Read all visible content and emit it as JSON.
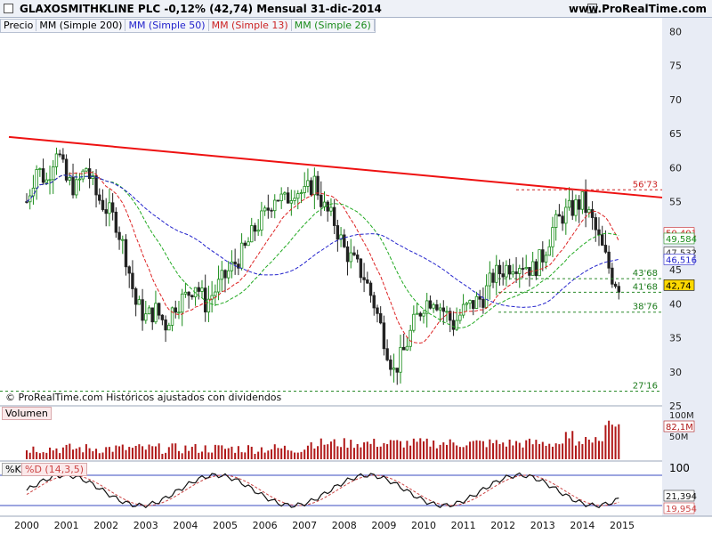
{
  "header": {
    "title": "GLAXOSMITHKLINE PLC   -0,12% (42,74)   Mensual   31-dic-2014",
    "site": "www.ProRealTime.com"
  },
  "legend": {
    "price": "Precio",
    "ma200": "MM (Simple 200)",
    "ma50": "MM (Simple 50)",
    "ma13": "MM (Simple 13)",
    "ma26": "MM (Simple 26)"
  },
  "copyright": "© ProRealTime.com Históricos ajustados con dividendos",
  "volume_label": "Volumen",
  "stoch_label_k": "%K",
  "stoch_label_d": "%D (14,3,5)",
  "colors": {
    "up": "#1a8c1a",
    "down": "#222222",
    "ma50": "#2222cc",
    "ma13": "#dd2222",
    "ma26": "#22aa22",
    "trend": "#ee1111",
    "vol": "#b01818",
    "k": "#111111",
    "d": "#cc4444"
  },
  "chart_data": [
    {
      "type": "candlestick",
      "title": "GLAXOSMITHKLINE PLC",
      "timeframe": "Mensual",
      "ylim": [
        25,
        82
      ],
      "y_ticks": [
        25,
        30,
        35,
        40,
        45,
        50,
        55,
        60,
        65,
        70,
        75,
        80
      ],
      "x_ticks": [
        "2000",
        "2001",
        "2002",
        "2003",
        "2004",
        "2005",
        "2006",
        "2007",
        "2008",
        "2009",
        "2010",
        "2011",
        "2012",
        "2013",
        "2014",
        "2015"
      ],
      "closes": [
        [
          2000.0,
          55
        ],
        [
          2000.25,
          60
        ],
        [
          2000.5,
          58
        ],
        [
          2000.75,
          63
        ],
        [
          2001.0,
          58
        ],
        [
          2001.25,
          57
        ],
        [
          2001.5,
          60
        ],
        [
          2001.75,
          56
        ],
        [
          2002.0,
          54
        ],
        [
          2002.25,
          52
        ],
        [
          2002.5,
          47
        ],
        [
          2002.75,
          40
        ],
        [
          2003.0,
          38
        ],
        [
          2003.25,
          39
        ],
        [
          2003.5,
          37
        ],
        [
          2003.75,
          40
        ],
        [
          2004.0,
          41
        ],
        [
          2004.25,
          43
        ],
        [
          2004.5,
          40
        ],
        [
          2004.75,
          42
        ],
        [
          2005.0,
          44
        ],
        [
          2005.25,
          46
        ],
        [
          2005.5,
          48
        ],
        [
          2005.75,
          51
        ],
        [
          2006.0,
          53
        ],
        [
          2006.25,
          56
        ],
        [
          2006.5,
          55
        ],
        [
          2006.75,
          57
        ],
        [
          2007.0,
          56
        ],
        [
          2007.25,
          58
        ],
        [
          2007.5,
          54
        ],
        [
          2007.75,
          52
        ],
        [
          2008.0,
          48
        ],
        [
          2008.25,
          46
        ],
        [
          2008.5,
          44
        ],
        [
          2008.75,
          40
        ],
        [
          2009.0,
          35
        ],
        [
          2009.25,
          30
        ],
        [
          2009.5,
          33
        ],
        [
          2009.75,
          37
        ],
        [
          2010.0,
          40
        ],
        [
          2010.25,
          41
        ],
        [
          2010.5,
          39
        ],
        [
          2010.75,
          37
        ],
        [
          2011.0,
          39
        ],
        [
          2011.25,
          40
        ],
        [
          2011.5,
          41
        ],
        [
          2011.75,
          44
        ],
        [
          2012.0,
          45
        ],
        [
          2012.25,
          46
        ],
        [
          2012.5,
          46
        ],
        [
          2012.75,
          45
        ],
        [
          2013.0,
          47
        ],
        [
          2013.25,
          51
        ],
        [
          2013.5,
          53
        ],
        [
          2013.75,
          54
        ],
        [
          2014.0,
          55
        ],
        [
          2014.25,
          52
        ],
        [
          2014.5,
          48
        ],
        [
          2014.75,
          44
        ],
        [
          2014.92,
          42.74
        ]
      ],
      "last_close": 42.74,
      "moving_averages": [
        {
          "name": "MM (Simple 200)",
          "last": 47.532
        },
        {
          "name": "MM (Simple 50)",
          "last": 46.516
        },
        {
          "name": "MM (Simple 13)",
          "last": 50.401
        },
        {
          "name": "MM (Simple 26)",
          "last": 49.584
        }
      ],
      "trendline": {
        "from": [
          2000.0,
          64.5
        ],
        "to": [
          2015.0,
          55.6
        ]
      },
      "levels": [
        {
          "label": "56'73",
          "value": 56.73
        },
        {
          "label": "43'68",
          "value": 43.68
        },
        {
          "label": "41'68",
          "value": 41.68
        },
        {
          "label": "38'76",
          "value": 38.76
        },
        {
          "label": "27'16",
          "value": 27.16
        }
      ],
      "price_tags": [
        "50,401",
        "49,584",
        "47,532",
        "46,516",
        "42,74"
      ]
    },
    {
      "type": "bar",
      "title": "Volumen",
      "y_ticks": [
        "100M",
        "50M"
      ],
      "last_value": "82,1M"
    },
    {
      "type": "line",
      "title": "%K / %D (14,3,5)",
      "y_ticks": [
        "100"
      ],
      "series": [
        {
          "name": "%K",
          "last": "21,394"
        },
        {
          "name": "%D (14,3,5)",
          "last": "19,954"
        }
      ]
    }
  ]
}
